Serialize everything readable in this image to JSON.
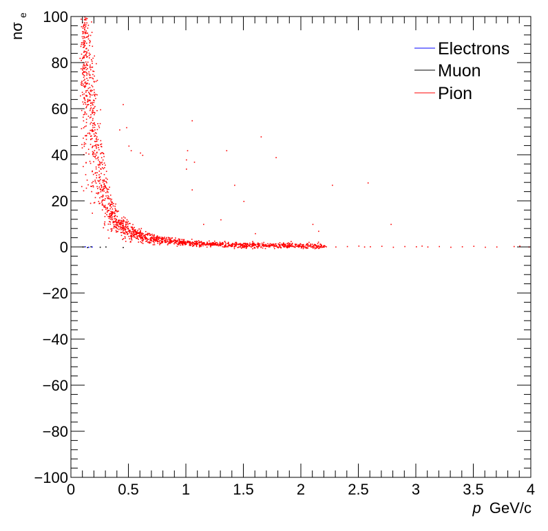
{
  "chart_data": {
    "type": "scatter",
    "title": "",
    "xlabel": {
      "var": "p",
      "unit": "GeV/c"
    },
    "ylabel": {
      "main": "nσ",
      "sub": "e"
    },
    "xlim": [
      0,
      4
    ],
    "ylim": [
      -100,
      100
    ],
    "x_ticks": [
      "0",
      "0.5",
      "1",
      "1.5",
      "2",
      "2.5",
      "3",
      "3.5",
      "4"
    ],
    "y_ticks": [
      "100",
      "80",
      "60",
      "40",
      "20",
      "0",
      "−20",
      "−40",
      "−60",
      "−80",
      "−100"
    ],
    "grid": false,
    "legend_position": "top-right",
    "legend": [
      {
        "label": "Electrons",
        "color": "#0000ff"
      },
      {
        "label": "Muon",
        "color": "#000000"
      },
      {
        "label": "Pion",
        "color": "#ff0000"
      }
    ],
    "series": [
      {
        "name": "Electrons",
        "color": "#0000ff",
        "points": [
          [
            0.12,
            0.3
          ],
          [
            0.15,
            0.1
          ],
          [
            0.18,
            0.2
          ]
        ]
      },
      {
        "name": "Muon",
        "color": "#000000",
        "points": [
          [
            0.1,
            0.2
          ],
          [
            0.14,
            0.0
          ],
          [
            0.17,
            0.3
          ],
          [
            0.25,
            0.1
          ],
          [
            0.3,
            0.2
          ],
          [
            0.45,
            0.0
          ]
        ]
      },
      {
        "name": "Pion",
        "color": "#ff0000",
        "curve": {
          "x": [
            0.1,
            0.13,
            0.16,
            0.2,
            0.25,
            0.3,
            0.35,
            0.4,
            0.5,
            0.6,
            0.7,
            0.8,
            1.0,
            1.2,
            1.5,
            2.0,
            2.5,
            3.0,
            4.0
          ],
          "y": [
            95,
            92,
            70,
            50,
            33,
            22,
            15,
            11,
            7,
            5,
            4,
            3,
            2,
            1.5,
            1,
            0.7,
            0.5,
            0.3,
            0.2
          ]
        },
        "outliers": [
          [
            0.45,
            62
          ],
          [
            0.42,
            51
          ],
          [
            0.48,
            52
          ],
          [
            0.5,
            44
          ],
          [
            0.52,
            42
          ],
          [
            0.6,
            41
          ],
          [
            0.62,
            40
          ],
          [
            1.05,
            55
          ],
          [
            1.01,
            42
          ],
          [
            1.0,
            38
          ],
          [
            1.07,
            37
          ],
          [
            1.0,
            34
          ],
          [
            1.05,
            25
          ],
          [
            1.35,
            42
          ],
          [
            1.42,
            27
          ],
          [
            1.5,
            20
          ],
          [
            1.65,
            48
          ],
          [
            1.78,
            39
          ],
          [
            2.27,
            27
          ],
          [
            2.58,
            28
          ],
          [
            2.1,
            10
          ],
          [
            2.78,
            10
          ],
          [
            2.15,
            7
          ],
          [
            1.6,
            6
          ],
          [
            1.3,
            12
          ],
          [
            1.15,
            10
          ]
        ],
        "tail_points": [
          [
            2.0,
            0.5
          ],
          [
            2.1,
            0.3
          ],
          [
            2.2,
            0.8
          ],
          [
            2.3,
            0.2
          ],
          [
            2.4,
            0.4
          ],
          [
            2.5,
            0.6
          ],
          [
            2.55,
            0.2
          ],
          [
            2.6,
            0.3
          ],
          [
            2.7,
            0.5
          ],
          [
            2.8,
            0.1
          ],
          [
            2.9,
            0.4
          ],
          [
            3.0,
            0.3
          ],
          [
            3.05,
            0.6
          ],
          [
            3.1,
            0.2
          ],
          [
            3.2,
            0.4
          ],
          [
            3.3,
            0.1
          ],
          [
            3.4,
            0.3
          ],
          [
            3.5,
            0.5
          ],
          [
            3.6,
            0.1
          ],
          [
            3.7,
            0.2
          ],
          [
            3.85,
            0.4
          ],
          [
            3.9,
            0.6
          ],
          [
            3.98,
            0.2
          ]
        ]
      }
    ]
  }
}
